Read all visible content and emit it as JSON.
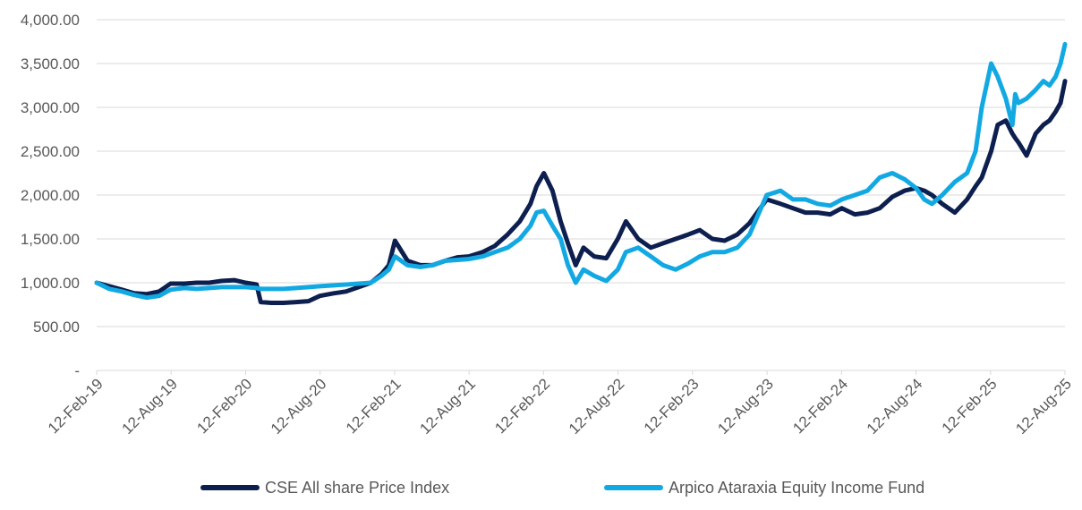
{
  "chart_data": {
    "type": "line",
    "title": "",
    "xlabel": "",
    "ylabel": "",
    "ylim": [
      0,
      4000
    ],
    "y_ticks": [
      "-",
      "500.00",
      "1,000.00",
      "1,500.00",
      "2,000.00",
      "2,500.00",
      "3,000.00",
      "3,500.00",
      "4,000.00"
    ],
    "y_tick_values": [
      0,
      500,
      1000,
      1500,
      2000,
      2500,
      3000,
      3500,
      4000
    ],
    "x_ticks": [
      "12-Feb-19",
      "12-Aug-19",
      "12-Feb-20",
      "12-Aug-20",
      "12-Feb-21",
      "12-Aug-21",
      "12-Feb-22",
      "12-Aug-22",
      "12-Feb-23",
      "12-Aug-23",
      "12-Feb-24",
      "12-Aug-24",
      "12-Feb-25",
      "12-Aug-25"
    ],
    "x_range": [
      "2019-02-12",
      "2025-08-12"
    ],
    "grid": "horizontal",
    "legend_position": "bottom",
    "series": [
      {
        "name": "CSE All share Price Index",
        "color": "#0d1f4f",
        "x": [
          "2019-02-12",
          "2019-03-15",
          "2019-04-15",
          "2019-05-15",
          "2019-06-15",
          "2019-07-15",
          "2019-08-12",
          "2019-09-15",
          "2019-10-15",
          "2019-11-15",
          "2019-12-15",
          "2020-01-15",
          "2020-02-12",
          "2020-03-10",
          "2020-03-20",
          "2020-04-15",
          "2020-05-15",
          "2020-06-15",
          "2020-07-15",
          "2020-08-12",
          "2020-09-15",
          "2020-10-15",
          "2020-11-15",
          "2020-12-15",
          "2021-01-10",
          "2021-01-28",
          "2021-02-12",
          "2021-03-15",
          "2021-04-15",
          "2021-05-15",
          "2021-06-15",
          "2021-07-15",
          "2021-08-12",
          "2021-09-15",
          "2021-10-15",
          "2021-11-15",
          "2021-12-15",
          "2022-01-10",
          "2022-01-25",
          "2022-02-12",
          "2022-03-05",
          "2022-03-25",
          "2022-04-12",
          "2022-05-01",
          "2022-05-20",
          "2022-06-15",
          "2022-07-15",
          "2022-08-12",
          "2022-09-01",
          "2022-10-01",
          "2022-11-01",
          "2022-12-01",
          "2023-01-01",
          "2023-02-01",
          "2023-03-01",
          "2023-04-01",
          "2023-05-01",
          "2023-06-01",
          "2023-07-01",
          "2023-08-12",
          "2023-09-15",
          "2023-10-15",
          "2023-11-15",
          "2023-12-15",
          "2024-01-15",
          "2024-02-12",
          "2024-03-15",
          "2024-04-15",
          "2024-05-15",
          "2024-06-15",
          "2024-07-15",
          "2024-08-12",
          "2024-09-01",
          "2024-09-20",
          "2024-10-15",
          "2024-11-15",
          "2024-12-15",
          "2025-01-05",
          "2025-01-20",
          "2025-02-12",
          "2025-02-28",
          "2025-03-20",
          "2025-04-05",
          "2025-04-12",
          "2025-04-20",
          "2025-05-10",
          "2025-06-01",
          "2025-06-20",
          "2025-07-05",
          "2025-07-20",
          "2025-08-01",
          "2025-08-12"
        ],
        "values": [
          1000,
          960,
          920,
          880,
          870,
          900,
          990,
          990,
          1000,
          1000,
          1020,
          1030,
          1000,
          980,
          780,
          770,
          770,
          780,
          790,
          850,
          880,
          900,
          950,
          1000,
          1100,
          1200,
          1480,
          1250,
          1200,
          1200,
          1250,
          1290,
          1300,
          1350,
          1420,
          1550,
          1700,
          1900,
          2100,
          2250,
          2050,
          1700,
          1450,
          1200,
          1400,
          1300,
          1280,
          1500,
          1700,
          1500,
          1400,
          1450,
          1500,
          1550,
          1600,
          1500,
          1480,
          1550,
          1680,
          1950,
          1900,
          1850,
          1800,
          1800,
          1780,
          1850,
          1780,
          1800,
          1850,
          1980,
          2050,
          2080,
          2050,
          2000,
          1900,
          1800,
          1950,
          2100,
          2200,
          2500,
          2800,
          2850,
          2700,
          2650,
          2600,
          2450,
          2700,
          2800,
          2850,
          2950,
          3050,
          3300
        ]
      },
      {
        "name": "Arpico Ataraxia Equity Income Fund",
        "color": "#12a9e3",
        "x": [
          "2019-02-12",
          "2019-03-15",
          "2019-04-15",
          "2019-05-15",
          "2019-06-15",
          "2019-07-15",
          "2019-08-12",
          "2019-09-15",
          "2019-10-15",
          "2019-11-15",
          "2019-12-15",
          "2020-01-15",
          "2020-02-12",
          "2020-03-10",
          "2020-03-20",
          "2020-04-15",
          "2020-05-15",
          "2020-06-15",
          "2020-07-15",
          "2020-08-12",
          "2020-09-15",
          "2020-10-15",
          "2020-11-15",
          "2020-12-15",
          "2021-01-10",
          "2021-01-28",
          "2021-02-12",
          "2021-03-15",
          "2021-04-15",
          "2021-05-15",
          "2021-06-15",
          "2021-07-15",
          "2021-08-12",
          "2021-09-15",
          "2021-10-15",
          "2021-11-15",
          "2021-12-15",
          "2022-01-10",
          "2022-01-25",
          "2022-02-12",
          "2022-03-05",
          "2022-03-25",
          "2022-04-12",
          "2022-05-01",
          "2022-05-20",
          "2022-06-15",
          "2022-07-15",
          "2022-08-12",
          "2022-09-01",
          "2022-10-01",
          "2022-11-01",
          "2022-12-01",
          "2023-01-01",
          "2023-02-01",
          "2023-03-01",
          "2023-04-01",
          "2023-05-01",
          "2023-06-01",
          "2023-07-01",
          "2023-08-12",
          "2023-09-15",
          "2023-10-15",
          "2023-11-15",
          "2023-12-15",
          "2024-01-15",
          "2024-02-12",
          "2024-03-15",
          "2024-04-15",
          "2024-05-15",
          "2024-06-15",
          "2024-07-15",
          "2024-08-12",
          "2024-09-01",
          "2024-09-20",
          "2024-10-15",
          "2024-11-15",
          "2024-12-15",
          "2025-01-05",
          "2025-01-20",
          "2025-02-12",
          "2025-02-28",
          "2025-03-20",
          "2025-04-05",
          "2025-04-12",
          "2025-04-20",
          "2025-05-10",
          "2025-06-01",
          "2025-06-20",
          "2025-07-05",
          "2025-07-20",
          "2025-08-01",
          "2025-08-12"
        ],
        "values": [
          1000,
          930,
          900,
          860,
          830,
          850,
          920,
          940,
          930,
          940,
          950,
          950,
          950,
          940,
          930,
          930,
          930,
          940,
          950,
          960,
          970,
          980,
          990,
          1000,
          1080,
          1150,
          1300,
          1200,
          1180,
          1200,
          1250,
          1260,
          1270,
          1300,
          1350,
          1400,
          1500,
          1650,
          1800,
          1820,
          1650,
          1500,
          1200,
          1000,
          1150,
          1080,
          1020,
          1150,
          1350,
          1400,
          1300,
          1200,
          1150,
          1220,
          1300,
          1350,
          1350,
          1400,
          1550,
          2000,
          2050,
          1950,
          1950,
          1900,
          1880,
          1950,
          2000,
          2050,
          2200,
          2250,
          2180,
          2080,
          1950,
          1900,
          2000,
          2150,
          2250,
          2500,
          3000,
          3500,
          3350,
          3100,
          2800,
          3150,
          3050,
          3100,
          3200,
          3300,
          3250,
          3350,
          3500,
          3720
        ]
      }
    ]
  },
  "legend": {
    "items": [
      {
        "label": "CSE All share Price Index",
        "color": "#0d1f4f"
      },
      {
        "label": "Arpico Ataraxia Equity Income Fund",
        "color": "#12a9e3"
      }
    ]
  }
}
